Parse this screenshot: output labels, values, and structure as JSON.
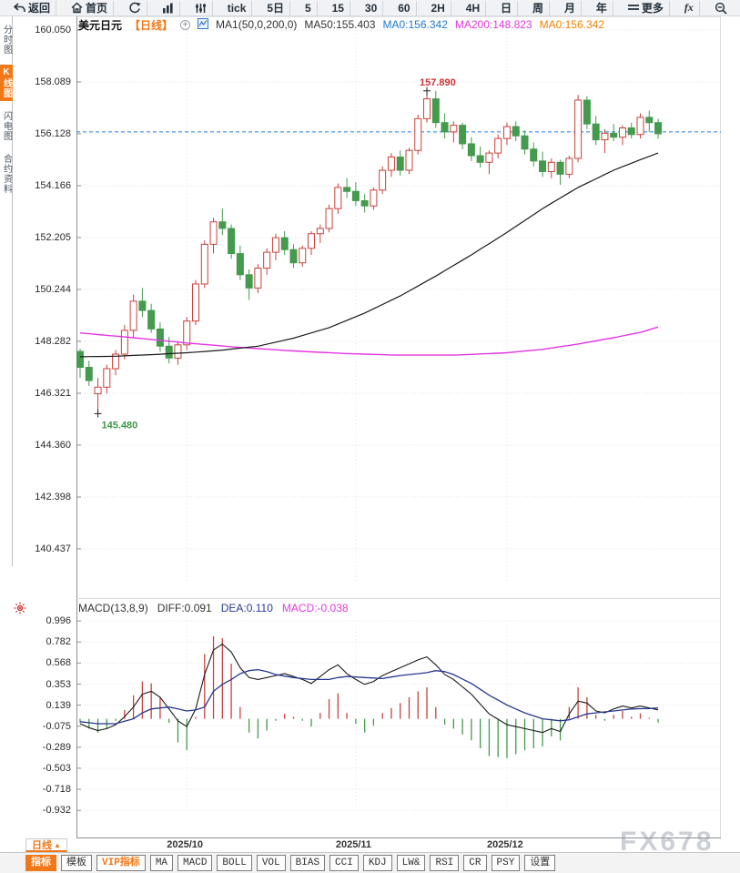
{
  "toolbar": {
    "items": [
      {
        "name": "back",
        "label": "返回",
        "icon": "back-arrow"
      },
      {
        "name": "home",
        "label": "首页",
        "icon": "home"
      },
      {
        "name": "refresh",
        "label": "",
        "icon": "refresh"
      },
      {
        "name": "chart-type",
        "label": "",
        "icon": "bar-chart"
      },
      {
        "name": "indicator-settings",
        "label": "",
        "icon": "sliders"
      },
      {
        "name": "tick",
        "label": "tick",
        "icon": ""
      },
      {
        "name": "5d",
        "label": "5日",
        "icon": ""
      },
      {
        "name": "5",
        "label": "5",
        "icon": ""
      },
      {
        "name": "15",
        "label": "15",
        "icon": ""
      },
      {
        "name": "30",
        "label": "30",
        "icon": ""
      },
      {
        "name": "60",
        "label": "60",
        "icon": ""
      },
      {
        "name": "2h",
        "label": "2H",
        "icon": ""
      },
      {
        "name": "4h",
        "label": "4H",
        "icon": ""
      },
      {
        "name": "day",
        "label": "日",
        "icon": ""
      },
      {
        "name": "week",
        "label": "周",
        "icon": ""
      },
      {
        "name": "month",
        "label": "月",
        "icon": ""
      },
      {
        "name": "year",
        "label": "年",
        "icon": ""
      },
      {
        "name": "more",
        "label": "更多",
        "icon": "hamburger"
      },
      {
        "name": "fx",
        "label": "fx",
        "icon": "fx"
      },
      {
        "name": "zoom-out",
        "label": "",
        "icon": "zoom-out"
      }
    ]
  },
  "sidebar": {
    "items": [
      {
        "name": "time-chart",
        "label": "分时图",
        "active": false
      },
      {
        "name": "kline-chart",
        "label": "K线图",
        "active": true
      },
      {
        "name": "lightning-chart",
        "label": "闪电图",
        "active": false
      },
      {
        "name": "contract-info",
        "label": "合约资料",
        "active": false
      }
    ]
  },
  "price_panel": {
    "instrument": "美元日元",
    "period_tag": "【日线】",
    "ma_formula": "MA1(50,0,200,0)",
    "ma50_text": "MA50:155.403",
    "ma0_blue_text": "MA0:156.342",
    "ma200_text": "MA200:148.823",
    "ma0_orange_text": "MA0:156.342",
    "high_annotation": "157.890",
    "low_annotation": "145.480"
  },
  "macd_panel": {
    "title": "MACD(13,8,9)",
    "diff_text": "DIFF:0.091",
    "dea_text": "DEA:0.110",
    "macd_text": "MACD:-0.038"
  },
  "x_axis": {
    "period_button": "日线",
    "period_arrow": "▲"
  },
  "watermark": "FX678",
  "bottom_tabs": [
    {
      "name": "indicator",
      "label": "指标",
      "style": "active"
    },
    {
      "name": "template",
      "label": "模板",
      "style": ""
    },
    {
      "name": "vip-indicator",
      "label": "VIP指标",
      "style": "vip"
    },
    {
      "name": "ma",
      "label": "MA",
      "style": ""
    },
    {
      "name": "macd",
      "label": "MACD",
      "style": ""
    },
    {
      "name": "boll",
      "label": "BOLL",
      "style": ""
    },
    {
      "name": "vol",
      "label": "VOL",
      "style": ""
    },
    {
      "name": "bias",
      "label": "BIAS",
      "style": ""
    },
    {
      "name": "cci",
      "label": "CCI",
      "style": ""
    },
    {
      "name": "kdj",
      "label": "KDJ",
      "style": ""
    },
    {
      "name": "lw",
      "label": "LW&",
      "style": ""
    },
    {
      "name": "rsi",
      "label": "RSI",
      "style": ""
    },
    {
      "name": "cr",
      "label": "CR",
      "style": ""
    },
    {
      "name": "psy",
      "label": "PSY",
      "style": ""
    },
    {
      "name": "settings",
      "label": "设置",
      "style": ""
    }
  ],
  "colors": {
    "up": "#c9413c",
    "down": "#449a4d",
    "accent_orange": "#f07818",
    "ma50": "#1a1a1a",
    "ma200": "#e335e3",
    "dea_blue": "#27388f",
    "dashed_price_line": "#1e7fdf",
    "annotation_up": "#cc3333",
    "annotation_down": "#3f9648",
    "title_blue": "#1f78d1",
    "title_magenta": "#e03ae0",
    "title_orange": "#f08300",
    "grid": "#e9e2e2"
  },
  "chart_data": {
    "type": "candlestick+macd",
    "instrument": "USD/JPY (美元日元)",
    "timeframe": "daily (日线)",
    "price_ticks": [
      160.05,
      158.089,
      156.128,
      154.166,
      152.205,
      150.244,
      148.282,
      146.321,
      144.36,
      142.398,
      140.437
    ],
    "macd_ticks": [
      0.996,
      0.782,
      0.568,
      0.353,
      0.139,
      -0.075,
      -0.289,
      -0.503,
      -0.718,
      -0.932
    ],
    "dashed_line_price": 156.2,
    "high_marker": {
      "index": 39,
      "price": 157.89,
      "label": "157.890"
    },
    "low_marker": {
      "index": 2,
      "price": 145.48,
      "label": "145.480"
    },
    "months": [
      {
        "label": "2025/10",
        "index": 12
      },
      {
        "label": "2025/11",
        "index": 31
      },
      {
        "label": "2025/12",
        "index": 48
      }
    ],
    "candles": [
      [
        147.9,
        148.0,
        146.9,
        147.3
      ],
      [
        147.3,
        147.55,
        146.6,
        146.8
      ],
      [
        146.3,
        146.9,
        145.48,
        146.55
      ],
      [
        146.55,
        147.4,
        146.3,
        147.25
      ],
      [
        147.25,
        147.95,
        147.0,
        147.8
      ],
      [
        147.8,
        148.9,
        147.6,
        148.7
      ],
      [
        148.7,
        150.05,
        148.4,
        149.8
      ],
      [
        149.8,
        150.3,
        149.2,
        149.45
      ],
      [
        149.45,
        149.7,
        148.6,
        148.75
      ],
      [
        148.75,
        149.0,
        147.9,
        148.1
      ],
      [
        148.1,
        148.45,
        147.45,
        147.65
      ],
      [
        147.65,
        148.3,
        147.4,
        148.15
      ],
      [
        148.15,
        149.2,
        147.95,
        149.05
      ],
      [
        149.05,
        150.6,
        148.9,
        150.45
      ],
      [
        150.45,
        152.1,
        150.3,
        151.95
      ],
      [
        151.95,
        152.95,
        151.6,
        152.8
      ],
      [
        152.8,
        153.3,
        152.3,
        152.55
      ],
      [
        152.55,
        152.7,
        151.4,
        151.6
      ],
      [
        151.6,
        151.9,
        150.6,
        150.8
      ],
      [
        150.8,
        151.0,
        149.85,
        150.3
      ],
      [
        150.3,
        151.2,
        150.1,
        151.05
      ],
      [
        151.05,
        151.8,
        150.8,
        151.65
      ],
      [
        151.65,
        152.35,
        151.35,
        152.2
      ],
      [
        152.2,
        152.45,
        151.55,
        151.75
      ],
      [
        151.75,
        151.95,
        151.05,
        151.25
      ],
      [
        151.25,
        151.9,
        151.1,
        151.8
      ],
      [
        151.8,
        152.45,
        151.55,
        152.35
      ],
      [
        152.35,
        152.7,
        152.0,
        152.55
      ],
      [
        152.55,
        153.45,
        152.4,
        153.3
      ],
      [
        153.3,
        154.25,
        153.1,
        154.1
      ],
      [
        154.1,
        154.45,
        153.7,
        153.95
      ],
      [
        153.95,
        154.3,
        153.4,
        153.6
      ],
      [
        153.6,
        153.85,
        153.15,
        153.4
      ],
      [
        153.4,
        154.1,
        153.25,
        154.0
      ],
      [
        154.0,
        154.9,
        153.85,
        154.75
      ],
      [
        154.75,
        155.4,
        154.5,
        155.25
      ],
      [
        155.25,
        155.5,
        154.55,
        154.75
      ],
      [
        154.75,
        155.6,
        154.6,
        155.5
      ],
      [
        155.5,
        156.85,
        155.35,
        156.7
      ],
      [
        156.7,
        157.89,
        156.55,
        157.45
      ],
      [
        157.45,
        157.75,
        156.35,
        156.55
      ],
      [
        156.55,
        156.9,
        155.95,
        156.2
      ],
      [
        156.2,
        156.6,
        155.8,
        156.45
      ],
      [
        156.45,
        156.55,
        155.55,
        155.75
      ],
      [
        155.75,
        156.0,
        155.1,
        155.3
      ],
      [
        155.3,
        155.65,
        154.85,
        155.05
      ],
      [
        155.05,
        155.5,
        154.6,
        155.4
      ],
      [
        155.4,
        156.1,
        155.2,
        155.95
      ],
      [
        155.95,
        156.55,
        155.7,
        156.4
      ],
      [
        156.4,
        156.6,
        155.85,
        156.05
      ],
      [
        156.05,
        156.25,
        155.35,
        155.55
      ],
      [
        155.55,
        155.8,
        154.9,
        155.1
      ],
      [
        155.1,
        155.45,
        154.5,
        154.7
      ],
      [
        154.7,
        155.2,
        154.45,
        155.05
      ],
      [
        155.05,
        155.15,
        154.2,
        154.6
      ],
      [
        154.6,
        155.3,
        154.45,
        155.2
      ],
      [
        155.2,
        157.6,
        155.05,
        157.4
      ],
      [
        157.4,
        157.55,
        156.3,
        156.5
      ],
      [
        156.5,
        156.8,
        155.7,
        155.9
      ],
      [
        155.9,
        156.3,
        155.4,
        156.15
      ],
      [
        156.15,
        156.5,
        155.85,
        156.0
      ],
      [
        156.0,
        156.45,
        155.7,
        156.35
      ],
      [
        156.35,
        156.55,
        155.95,
        156.1
      ],
      [
        156.1,
        156.9,
        155.95,
        156.75
      ],
      [
        156.75,
        157.0,
        156.2,
        156.55
      ],
      [
        156.55,
        156.7,
        155.95,
        156.13
      ]
    ],
    "ma50_keypoints": [
      [
        0,
        147.7
      ],
      [
        4,
        147.72
      ],
      [
        8,
        147.78
      ],
      [
        12,
        147.85
      ],
      [
        16,
        147.95
      ],
      [
        20,
        148.1
      ],
      [
        24,
        148.4
      ],
      [
        28,
        148.8
      ],
      [
        32,
        149.35
      ],
      [
        36,
        150.0
      ],
      [
        40,
        150.75
      ],
      [
        44,
        151.55
      ],
      [
        48,
        152.4
      ],
      [
        52,
        153.3
      ],
      [
        56,
        154.1
      ],
      [
        60,
        154.75
      ],
      [
        63,
        155.15
      ],
      [
        65,
        155.4
      ]
    ],
    "ma200_keypoints": [
      [
        0,
        148.6
      ],
      [
        6,
        148.42
      ],
      [
        12,
        148.22
      ],
      [
        18,
        148.05
      ],
      [
        24,
        147.92
      ],
      [
        30,
        147.82
      ],
      [
        36,
        147.76
      ],
      [
        42,
        147.76
      ],
      [
        48,
        147.85
      ],
      [
        52,
        147.98
      ],
      [
        56,
        148.18
      ],
      [
        60,
        148.42
      ],
      [
        63,
        148.62
      ],
      [
        65,
        148.82
      ]
    ],
    "macd": {
      "params": "13,8,9",
      "diff_keypoints": [
        [
          0,
          -0.05
        ],
        [
          1,
          -0.09
        ],
        [
          2,
          -0.12
        ],
        [
          3,
          -0.1
        ],
        [
          4,
          -0.06
        ],
        [
          5,
          0.02
        ],
        [
          6,
          0.12
        ],
        [
          7,
          0.25
        ],
        [
          8,
          0.28
        ],
        [
          9,
          0.22
        ],
        [
          10,
          0.1
        ],
        [
          11,
          -0.02
        ],
        [
          12,
          -0.08
        ],
        [
          13,
          0.1
        ],
        [
          14,
          0.45
        ],
        [
          15,
          0.7
        ],
        [
          16,
          0.76
        ],
        [
          17,
          0.68
        ],
        [
          18,
          0.52
        ],
        [
          19,
          0.42
        ],
        [
          20,
          0.4
        ],
        [
          21,
          0.42
        ],
        [
          23,
          0.46
        ],
        [
          25,
          0.4
        ],
        [
          26,
          0.36
        ],
        [
          28,
          0.5
        ],
        [
          29,
          0.55
        ],
        [
          30,
          0.46
        ],
        [
          31,
          0.4
        ],
        [
          32,
          0.35
        ],
        [
          33,
          0.38
        ],
        [
          34,
          0.44
        ],
        [
          36,
          0.52
        ],
        [
          38,
          0.6
        ],
        [
          39,
          0.63
        ],
        [
          40,
          0.55
        ],
        [
          41,
          0.45
        ],
        [
          42,
          0.4
        ],
        [
          44,
          0.25
        ],
        [
          46,
          0.05
        ],
        [
          48,
          -0.06
        ],
        [
          50,
          -0.1
        ],
        [
          52,
          -0.14
        ],
        [
          53,
          -0.1
        ],
        [
          54,
          -0.13
        ],
        [
          55,
          0.05
        ],
        [
          56,
          0.18
        ],
        [
          57,
          0.16
        ],
        [
          58,
          0.08
        ],
        [
          59,
          0.06
        ],
        [
          60,
          0.1
        ],
        [
          61,
          0.13
        ],
        [
          62,
          0.11
        ],
        [
          63,
          0.13
        ],
        [
          64,
          0.11
        ],
        [
          65,
          0.091
        ]
      ],
      "dea_keypoints": [
        [
          0,
          -0.03
        ],
        [
          2,
          -0.05
        ],
        [
          4,
          -0.05
        ],
        [
          6,
          0.0
        ],
        [
          7,
          0.06
        ],
        [
          8,
          0.1
        ],
        [
          10,
          0.12
        ],
        [
          12,
          0.08
        ],
        [
          13,
          0.09
        ],
        [
          14,
          0.12
        ],
        [
          15,
          0.28
        ],
        [
          16,
          0.35
        ],
        [
          17,
          0.4
        ],
        [
          18,
          0.46
        ],
        [
          19,
          0.49
        ],
        [
          20,
          0.5
        ],
        [
          21,
          0.48
        ],
        [
          22,
          0.45
        ],
        [
          24,
          0.42
        ],
        [
          26,
          0.4
        ],
        [
          28,
          0.4
        ],
        [
          29,
          0.42
        ],
        [
          30,
          0.43
        ],
        [
          32,
          0.42
        ],
        [
          34,
          0.41
        ],
        [
          36,
          0.44
        ],
        [
          38,
          0.46
        ],
        [
          39,
          0.47
        ],
        [
          40,
          0.49
        ],
        [
          41,
          0.48
        ],
        [
          42,
          0.45
        ],
        [
          44,
          0.36
        ],
        [
          46,
          0.24
        ],
        [
          48,
          0.14
        ],
        [
          50,
          0.06
        ],
        [
          52,
          0.0
        ],
        [
          54,
          -0.02
        ],
        [
          55,
          -0.01
        ],
        [
          56,
          0.02
        ],
        [
          57,
          0.05
        ],
        [
          58,
          0.06
        ],
        [
          60,
          0.08
        ],
        [
          62,
          0.1
        ],
        [
          64,
          0.105
        ],
        [
          65,
          0.11
        ]
      ],
      "hist_rule": "2*(DIFF-DEA)",
      "last_values": {
        "diff": 0.091,
        "dea": 0.11,
        "macd": -0.038
      }
    }
  }
}
